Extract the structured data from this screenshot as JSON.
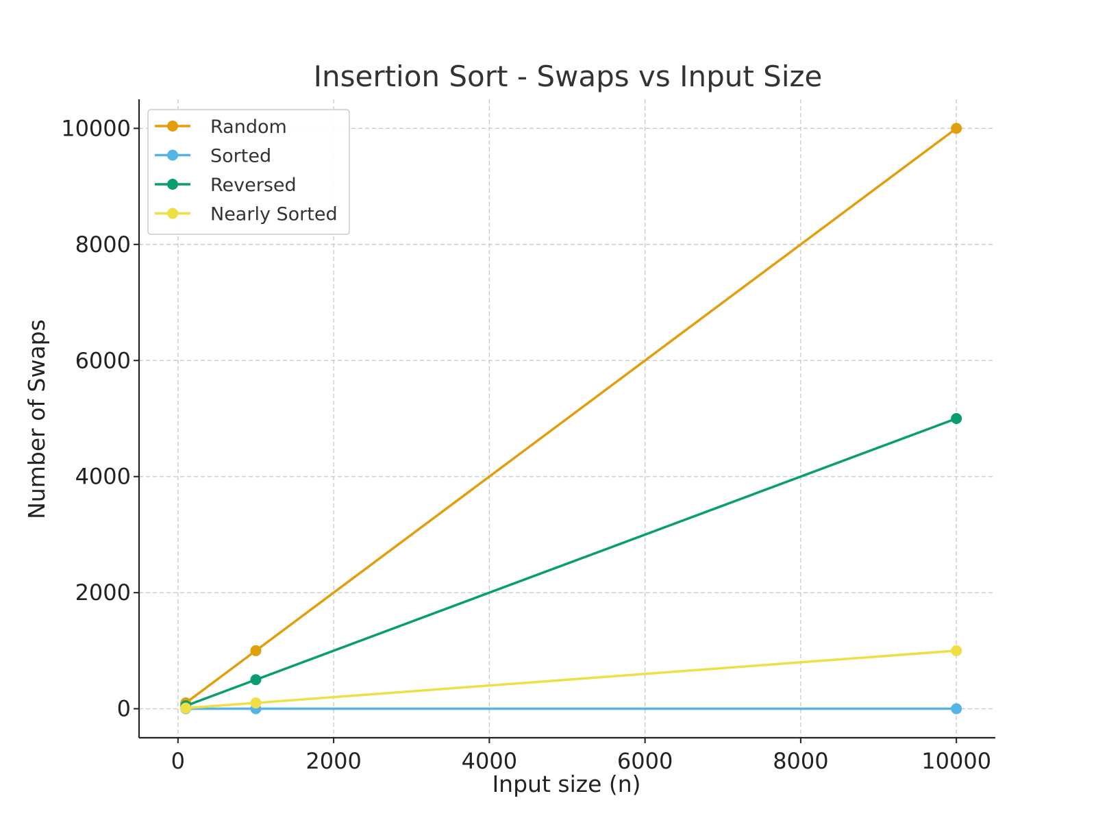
{
  "chart_data": {
    "type": "line",
    "title": "Insertion Sort - Swaps vs Input Size",
    "xlabel": "Input size (n)",
    "ylabel": "Number of Swaps",
    "x": [
      100,
      1000,
      10000
    ],
    "xlim": [
      -500,
      10500
    ],
    "ylim": [
      -500,
      10500
    ],
    "xticks": [
      0,
      2000,
      4000,
      6000,
      8000,
      10000
    ],
    "yticks": [
      0,
      2000,
      4000,
      6000,
      8000,
      10000
    ],
    "grid": true,
    "legend_position": "top-left",
    "series": [
      {
        "name": "Random",
        "values": [
          100,
          1000,
          10000
        ],
        "color": "#E19E0D"
      },
      {
        "name": "Sorted",
        "values": [
          0,
          0,
          0
        ],
        "color": "#56B3E5"
      },
      {
        "name": "Reversed",
        "values": [
          50,
          500,
          5000
        ],
        "color": "#0A9D72"
      },
      {
        "name": "Nearly Sorted",
        "values": [
          10,
          100,
          1000
        ],
        "color": "#EEDF44"
      }
    ]
  }
}
